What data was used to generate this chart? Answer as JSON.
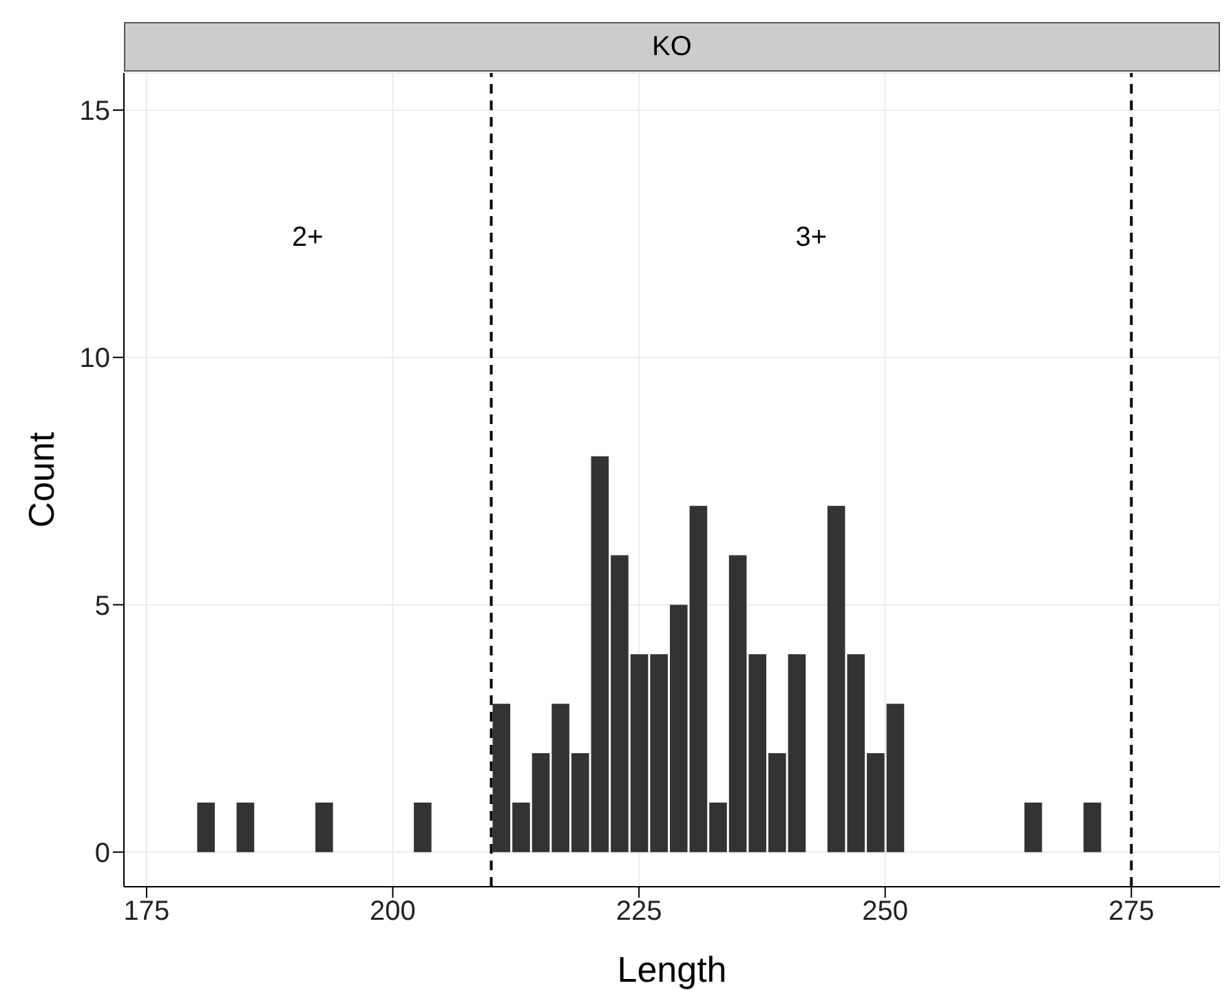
{
  "chart_data": {
    "type": "histogram",
    "title": "KO",
    "xlabel": "Length",
    "ylabel": "Count",
    "color": "#333333",
    "bins": [
      180,
      182,
      184,
      186,
      188,
      190,
      192,
      194,
      196,
      198,
      200,
      202,
      204,
      206,
      208,
      210,
      212,
      214,
      216,
      218,
      220,
      222,
      224,
      226,
      228,
      230,
      232,
      234,
      236,
      238,
      240,
      242,
      244,
      246,
      248,
      250,
      252,
      254,
      256,
      258,
      260,
      262,
      264,
      266,
      268,
      270,
      272
    ],
    "values": [
      1,
      0,
      1,
      0,
      0,
      0,
      1,
      0,
      0,
      0,
      0,
      1,
      0,
      0,
      0,
      3,
      1,
      2,
      3,
      2,
      8,
      6,
      4,
      4,
      5,
      7,
      1,
      6,
      4,
      2,
      4,
      0,
      7,
      4,
      2,
      3,
      0,
      0,
      0,
      0,
      0,
      0,
      1,
      0,
      0,
      1
    ],
    "xlim": [
      172.7,
      284
    ],
    "xticks": [
      175,
      200,
      225,
      250,
      275
    ],
    "ylim": [
      -0.7,
      15.75
    ],
    "yticks": [
      0,
      5,
      10,
      15
    ],
    "grid": true,
    "ref_lines": [
      {
        "axis": "x",
        "value": 210,
        "line_style": "dashed",
        "color": "#000000"
      },
      {
        "axis": "x",
        "value": 275,
        "line_style": "dashed",
        "color": "#000000"
      }
    ],
    "annotations": [
      "2+",
      "3+"
    ]
  }
}
